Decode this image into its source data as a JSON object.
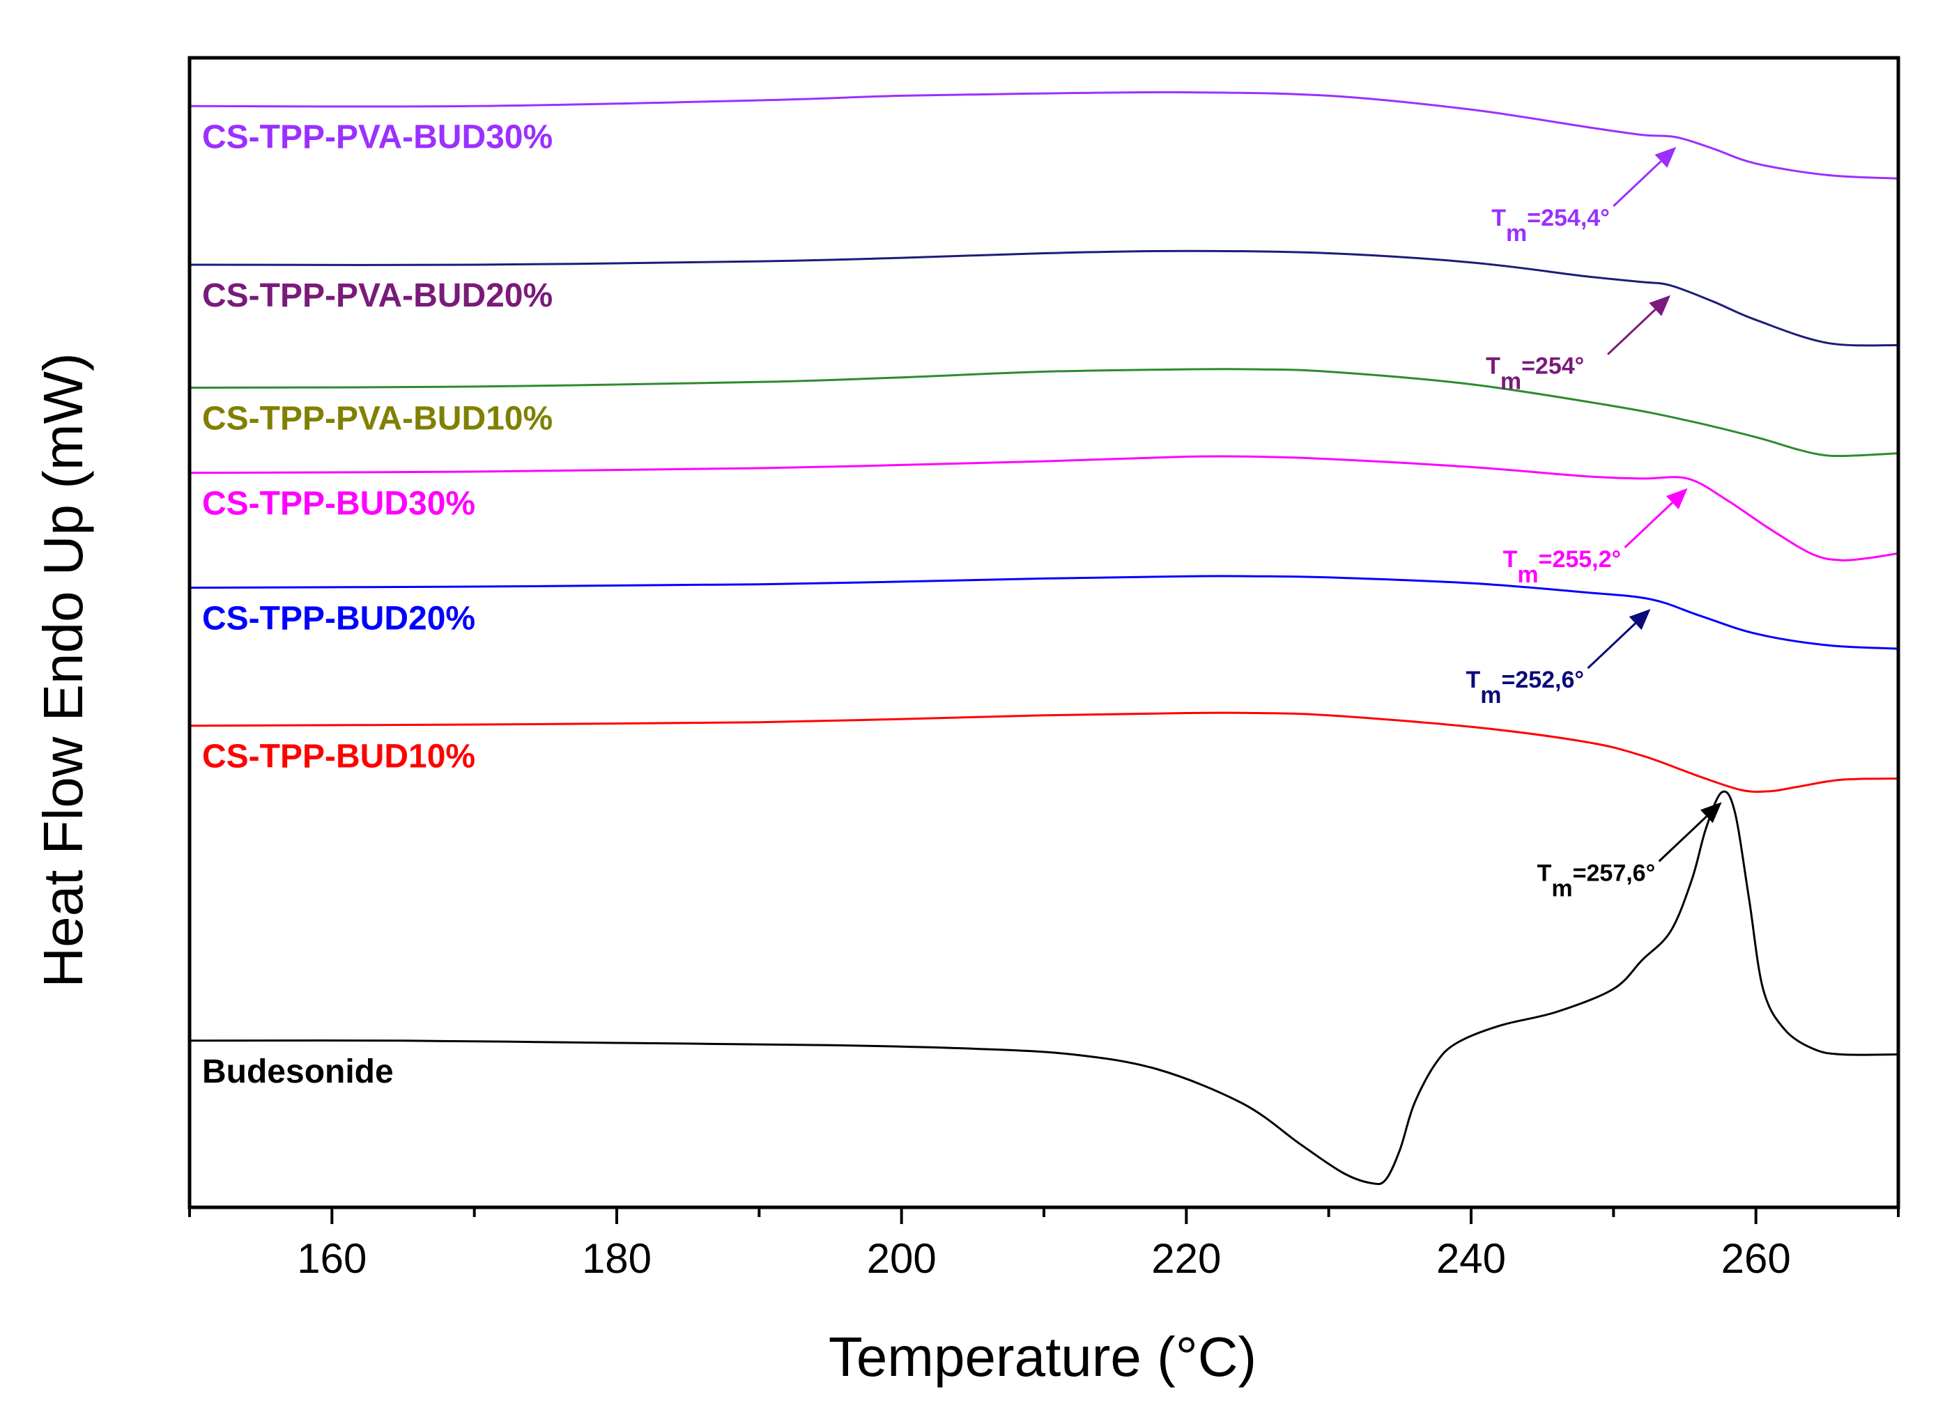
{
  "chart_data": {
    "type": "line",
    "title": "",
    "xlabel": "Temperature (°C)",
    "ylabel": "Heat Flow Endo Up (mW)",
    "xlim": [
      150,
      270
    ],
    "ylim": [
      0,
      100
    ],
    "xticks": [
      160,
      180,
      200,
      220,
      240,
      260
    ],
    "grid": false,
    "series": [
      {
        "name": "CS-TPP-PVA-BUD30%",
        "color": "#9B30FF",
        "annotation": {
          "prefix": "T",
          "sub": "m",
          "suffix": "=254,4°",
          "color": "#9B30FF"
        },
        "x": [
          150,
          170,
          190,
          200,
          210,
          220,
          230,
          240,
          248,
          252,
          254.4,
          257,
          260,
          265,
          270
        ],
        "y": [
          95.8,
          95.8,
          96.3,
          96.7,
          96.9,
          97.0,
          96.7,
          95.5,
          94.0,
          93.3,
          93.1,
          92.1,
          90.8,
          89.8,
          89.5
        ]
      },
      {
        "name": "CS-TPP-PVA-BUD20%",
        "color": "#1C1C7A",
        "labelColor": "#7A1A7A",
        "annotation": {
          "prefix": "T",
          "sub": "m",
          "suffix": "=254°",
          "color": "#7A1A7A"
        },
        "x": [
          150,
          170,
          190,
          200,
          210,
          220,
          230,
          240,
          248,
          252,
          254,
          257,
          260,
          265,
          270
        ],
        "y": [
          82.0,
          82.0,
          82.3,
          82.6,
          83.0,
          83.2,
          83.0,
          82.2,
          81.0,
          80.5,
          80.2,
          78.8,
          77.2,
          75.2,
          75.0
        ]
      },
      {
        "name": "CS-TPP-PVA-BUD10%",
        "color": "#2E8B2E",
        "labelColor": "#808000",
        "x": [
          150,
          170,
          190,
          200,
          210,
          220,
          225,
          230,
          240,
          250,
          255,
          260,
          263,
          265,
          267,
          270
        ],
        "y": [
          71.3,
          71.4,
          71.8,
          72.2,
          72.7,
          72.9,
          72.9,
          72.7,
          71.6,
          69.7,
          68.5,
          67.0,
          65.9,
          65.4,
          65.4,
          65.6
        ]
      },
      {
        "name": "CS-TPP-BUD30%",
        "color": "#FF00FF",
        "annotation": {
          "prefix": "T",
          "sub": "m",
          "suffix": "=255,2°",
          "color": "#FF00FF"
        },
        "x": [
          150,
          170,
          190,
          210,
          220,
          225,
          230,
          240,
          248,
          252,
          255.2,
          258,
          261,
          264,
          266,
          268,
          270
        ],
        "y": [
          63.9,
          64.0,
          64.3,
          64.9,
          65.3,
          65.3,
          65.1,
          64.4,
          63.6,
          63.4,
          63.4,
          61.5,
          59.0,
          56.8,
          56.3,
          56.5,
          56.9
        ]
      },
      {
        "name": "CS-TPP-BUD20%",
        "color": "#0000FF",
        "annotation": {
          "prefix": "T",
          "sub": "m",
          "suffix": "=252,6°",
          "color": "#0A0A7A"
        },
        "x": [
          150,
          170,
          190,
          210,
          220,
          225,
          230,
          240,
          248,
          252.6,
          256,
          260,
          265,
          270
        ],
        "y": [
          53.9,
          54.0,
          54.2,
          54.7,
          54.9,
          54.9,
          54.8,
          54.3,
          53.5,
          52.9,
          51.5,
          49.9,
          48.9,
          48.6
        ]
      },
      {
        "name": "CS-TPP-BUD10%",
        "color": "#FF0000",
        "x": [
          150,
          170,
          190,
          210,
          220,
          225,
          230,
          240,
          248,
          252,
          256,
          259,
          261,
          263,
          266,
          270
        ],
        "y": [
          41.9,
          42.0,
          42.2,
          42.8,
          43.0,
          43.0,
          42.8,
          41.8,
          40.5,
          39.3,
          37.5,
          36.3,
          36.2,
          36.6,
          37.2,
          37.3
        ]
      },
      {
        "name": "Budesonide",
        "color": "#000000",
        "annotation": {
          "prefix": "T",
          "sub": "m",
          "suffix": "=257,6°",
          "color": "#000000"
        },
        "x": [
          150,
          165,
          180,
          195,
          205,
          212,
          218,
          224,
          228,
          231,
          233,
          234,
          235,
          236,
          237.5,
          239,
          242,
          246,
          250,
          252,
          254,
          255.5,
          256.5,
          257.6,
          258.5,
          259.5,
          260.5,
          262,
          264,
          266,
          270
        ],
        "y": [
          14.5,
          14.5,
          14.3,
          14.1,
          13.8,
          13.3,
          12.0,
          9.0,
          5.5,
          3.0,
          2.1,
          2.4,
          5.0,
          9.0,
          12.5,
          14.3,
          15.8,
          17.0,
          19.0,
          21.5,
          24.0,
          28.5,
          33.0,
          36.1,
          34.5,
          27.0,
          19.0,
          15.5,
          13.8,
          13.3,
          13.3
        ]
      }
    ]
  }
}
